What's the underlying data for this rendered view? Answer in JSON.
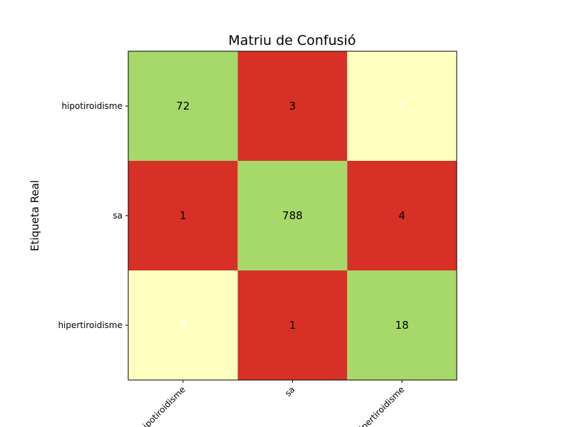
{
  "chart_data": {
    "type": "heatmap",
    "title": "Matriu de Confusió",
    "ylabel": "Etiqueta Real",
    "xlabel": "",
    "x_tick_labels": [
      "hipotiroidisme",
      "sa",
      "hipertiroidisme"
    ],
    "y_tick_labels": [
      "hipotiroidisme",
      "sa",
      "hipertiroidisme"
    ],
    "matrix": [
      [
        72,
        3,
        0
      ],
      [
        1,
        788,
        4
      ],
      [
        0,
        1,
        18
      ]
    ],
    "colors": {
      "diagonal": "#a6d96a",
      "error": "#d73027",
      "zero": "#ffffbf"
    },
    "label_colors": {
      "default": "#000000",
      "zero": "#ffffff"
    }
  }
}
